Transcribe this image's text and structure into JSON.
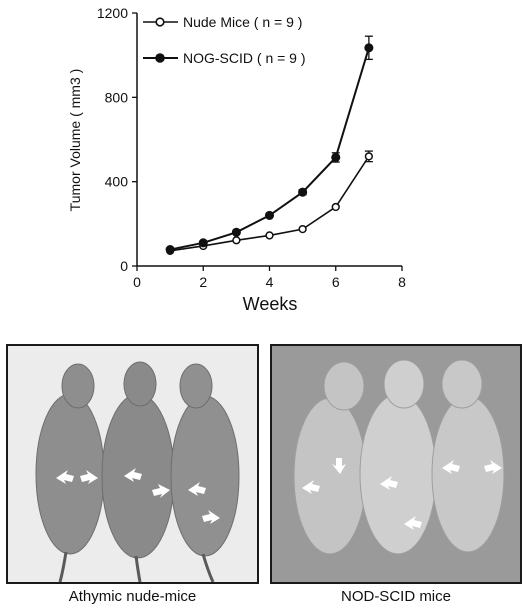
{
  "chart_data": {
    "type": "line",
    "xlabel": "Weeks",
    "ylabel": "Tumor Volume ( mm3 )",
    "xlim": [
      0,
      8
    ],
    "ylim": [
      0,
      1200
    ],
    "x_ticks": [
      "0",
      "2",
      "4",
      "6",
      "8"
    ],
    "y_ticks": [
      "0",
      "400",
      "800",
      "1200"
    ],
    "grid": false,
    "legend_position": "top-left",
    "series": [
      {
        "name": "Nude Mice ( n = 9 )",
        "marker": "open-circle",
        "color": "#111111",
        "x": [
          1,
          2,
          3,
          4,
          5,
          6,
          7
        ],
        "values": [
          72,
          95,
          122,
          145,
          175,
          280,
          520
        ],
        "error": [
          0,
          0,
          0,
          0,
          0,
          0,
          25
        ]
      },
      {
        "name": "NOG-SCID ( n = 9 )",
        "marker": "filled-circle",
        "color": "#111111",
        "x": [
          1,
          2,
          3,
          4,
          5,
          6,
          7
        ],
        "values": [
          78,
          110,
          160,
          240,
          350,
          515,
          1035
        ],
        "error": [
          0,
          0,
          0,
          0,
          12,
          22,
          55
        ]
      }
    ]
  },
  "photos": [
    {
      "caption": "Athymic nude-mice",
      "arrow_color": "#ffffff",
      "mouse_color": "#8e8e8e",
      "bg_color": "#ececec"
    },
    {
      "caption": "NOD-SCID mice",
      "arrow_color": "#ffffff",
      "mouse_color": "#bdbdbd",
      "bg_color": "#9a9a9a"
    }
  ]
}
